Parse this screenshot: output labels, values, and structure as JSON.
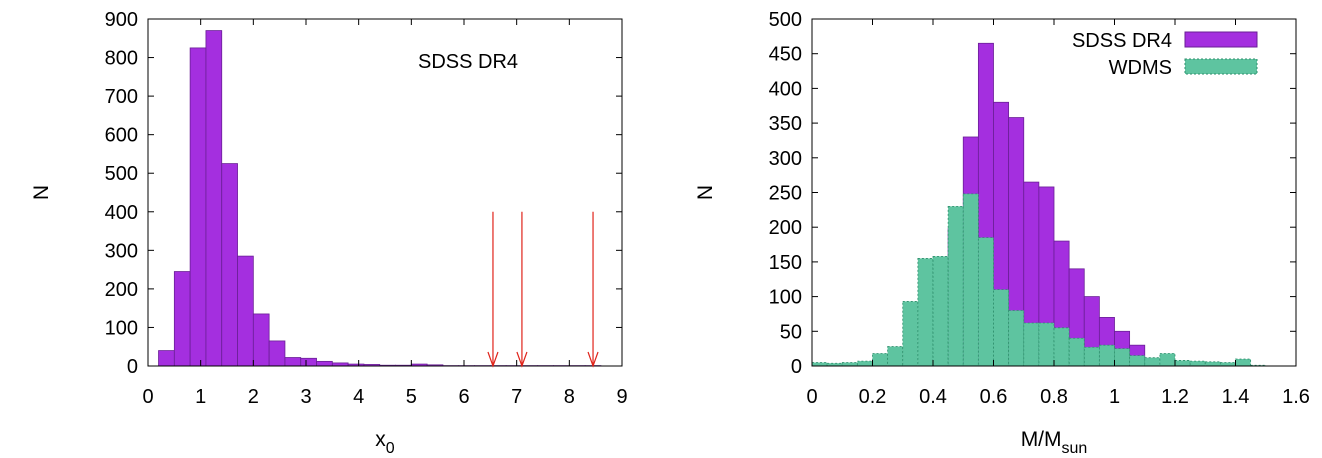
{
  "chart_data": [
    {
      "type": "bar",
      "title": "",
      "annotation": "SDSS DR4",
      "xlabel_base": "x",
      "xlabel_sub": "0",
      "ylabel": "N",
      "xlim": [
        0,
        9
      ],
      "ylim": [
        0,
        900
      ],
      "xticks": [
        "0",
        "1",
        "2",
        "3",
        "4",
        "5",
        "6",
        "7",
        "8",
        "9"
      ],
      "yticks": [
        "0",
        "100",
        "200",
        "300",
        "400",
        "500",
        "600",
        "700",
        "800",
        "900"
      ],
      "bin_width": 0.3,
      "bin_start": 0.2,
      "values": [
        40,
        245,
        825,
        870,
        525,
        285,
        135,
        65,
        22,
        20,
        12,
        8,
        5,
        4,
        2,
        2,
        5,
        3,
        1,
        1,
        1,
        1,
        1,
        1,
        1,
        1,
        1,
        1
      ],
      "color": "#a42fdf",
      "stroke": "#6a1f96",
      "arrows": {
        "x": [
          6.55,
          7.1,
          8.45
        ],
        "y_top": 400,
        "y_bottom": 0,
        "color": "#e0241b"
      }
    },
    {
      "type": "bar",
      "title": "",
      "xlabel_base": "M/M",
      "xlabel_sub": "sun",
      "ylabel": "N",
      "xlim": [
        0,
        1.6
      ],
      "ylim": [
        0,
        500
      ],
      "xticks": [
        "0",
        "0.2",
        "0.4",
        "0.6",
        "0.8",
        "1",
        "1.2",
        "1.4",
        "1.6"
      ],
      "yticks": [
        "0",
        "50",
        "100",
        "150",
        "200",
        "250",
        "300",
        "350",
        "400",
        "450",
        "500"
      ],
      "bin_width": 0.05,
      "bin_start": 0.45,
      "legend_position": "top-right",
      "series": [
        {
          "name": "SDSS DR4",
          "color": "#a42fdf",
          "stroke": "#6a1f96",
          "x_start": 0.45,
          "values": [
            198,
            330,
            465,
            380,
            358,
            265,
            258,
            180,
            140,
            100,
            70,
            50,
            30
          ]
        },
        {
          "name": "WDMS",
          "color": "#5ec4a0",
          "stroke": "#2e8f6c",
          "dashed": true,
          "x_start": 0.0,
          "values": [
            5,
            4,
            5,
            7,
            18,
            28,
            93,
            155,
            158,
            230,
            248,
            185,
            110,
            80,
            62,
            62,
            55,
            40,
            27,
            30,
            25,
            15,
            12,
            18,
            8,
            7,
            6,
            5,
            10,
            1
          ]
        }
      ]
    }
  ]
}
